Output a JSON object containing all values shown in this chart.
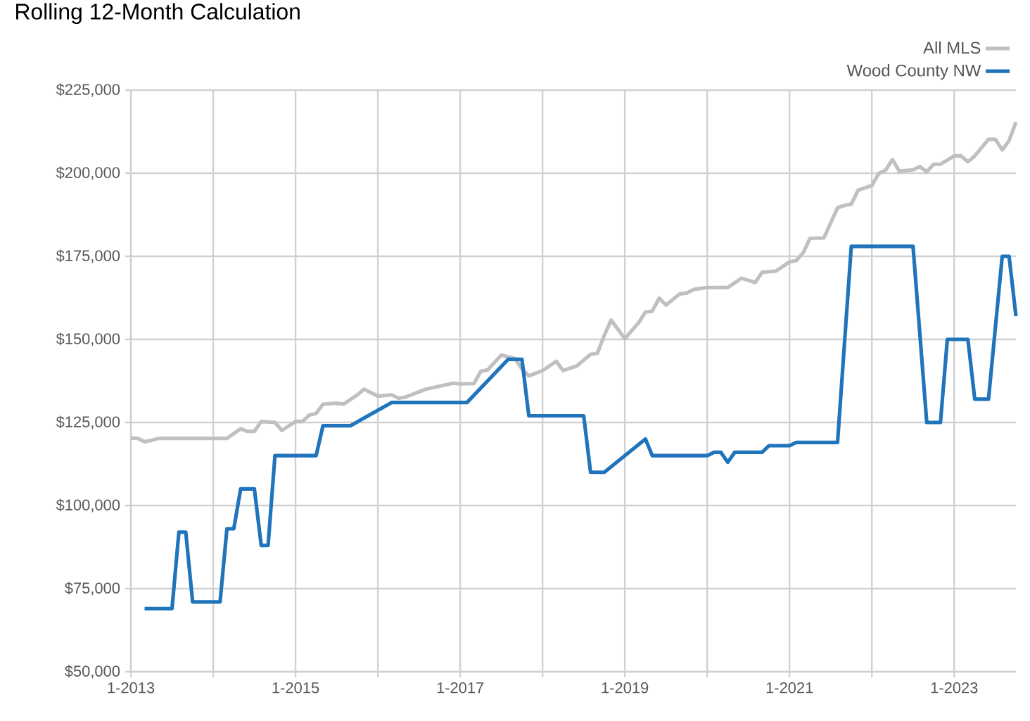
{
  "chart_data": {
    "type": "line",
    "title": "Rolling 12-Month Calculation",
    "series": [
      {
        "name": "All MLS",
        "color": "#c0c0c0",
        "x": [
          "2013-01",
          "2013-02",
          "2013-03",
          "2013-04",
          "2013-05",
          "2014-03",
          "2014-05",
          "2014-06",
          "2014-07",
          "2014-08",
          "2014-10",
          "2014-11",
          "2015-01",
          "2015-02",
          "2015-03",
          "2015-04",
          "2015-05",
          "2015-07",
          "2015-08",
          "2015-10",
          "2015-11",
          "2016-01",
          "2016-03",
          "2016-04",
          "2016-05",
          "2016-08",
          "2016-10",
          "2016-12",
          "2017-01",
          "2017-03",
          "2017-04",
          "2017-05",
          "2017-07",
          "2017-09",
          "2017-10",
          "2017-11",
          "2018-01",
          "2018-03",
          "2018-04",
          "2018-06",
          "2018-08",
          "2018-09",
          "2018-10",
          "2018-11",
          "2019-01",
          "2019-03",
          "2019-04",
          "2019-05",
          "2019-06",
          "2019-07",
          "2019-09",
          "2019-10",
          "2019-11",
          "2020-01",
          "2020-04",
          "2020-06",
          "2020-08",
          "2020-09",
          "2020-11",
          "2021-01",
          "2021-02",
          "2021-03",
          "2021-04",
          "2021-06",
          "2021-08",
          "2021-09",
          "2021-10",
          "2021-11",
          "2022-01",
          "2022-02",
          "2022-03",
          "2022-04",
          "2022-05",
          "2022-07",
          "2022-08",
          "2022-09",
          "2022-10",
          "2022-11",
          "2023-01",
          "2023-02",
          "2023-03",
          "2023-04",
          "2023-06",
          "2023-07",
          "2023-08",
          "2023-09",
          "2023-10"
        ],
        "values": [
          120300,
          120200,
          119200,
          119600,
          120200,
          120200,
          123100,
          122300,
          122300,
          125300,
          125000,
          122600,
          125300,
          125300,
          127200,
          127700,
          130500,
          130800,
          130500,
          133300,
          135000,
          132900,
          133300,
          132300,
          132600,
          135000,
          135900,
          136800,
          136600,
          136700,
          140400,
          140800,
          145300,
          144200,
          141100,
          139000,
          140600,
          143400,
          140600,
          142000,
          145500,
          145800,
          151200,
          155800,
          150200,
          155000,
          158200,
          158500,
          162400,
          160300,
          163700,
          163900,
          165000,
          165600,
          165600,
          168400,
          167100,
          170200,
          170500,
          173300,
          173700,
          176100,
          180400,
          180500,
          189600,
          190300,
          190700,
          194900,
          196300,
          199900,
          200900,
          204100,
          200600,
          201000,
          202000,
          200400,
          202700,
          202700,
          205200,
          205200,
          203400,
          205200,
          210200,
          210200,
          207000,
          209800,
          215400
        ]
      },
      {
        "name": "Wood County NW",
        "color": "#1f74bb",
        "x": [
          "2013-03",
          "2013-07",
          "2013-08",
          "2013-09",
          "2013-10",
          "2014-02",
          "2014-03",
          "2014-04",
          "2014-05",
          "2014-07",
          "2014-08",
          "2014-09",
          "2014-10",
          "2015-04",
          "2015-05",
          "2015-09",
          "2016-03",
          "2017-02",
          "2017-08",
          "2017-10",
          "2017-11",
          "2018-07",
          "2018-08",
          "2018-10",
          "2019-04",
          "2019-05",
          "2020-01",
          "2020-02",
          "2020-03",
          "2020-04",
          "2020-05",
          "2020-09",
          "2020-10",
          "2021-01",
          "2021-02",
          "2021-08",
          "2021-10",
          "2022-07",
          "2022-09",
          "2022-11",
          "2022-12",
          "2023-03",
          "2023-04",
          "2023-06",
          "2023-08",
          "2023-09",
          "2023-10"
        ],
        "values": [
          69000,
          69000,
          92000,
          92000,
          71000,
          71000,
          93000,
          93000,
          105000,
          105000,
          88000,
          88000,
          115000,
          115000,
          124000,
          124000,
          131000,
          131000,
          144000,
          144000,
          127000,
          127000,
          110000,
          110000,
          120000,
          115000,
          115000,
          116000,
          116000,
          113000,
          116000,
          116000,
          118000,
          118000,
          119000,
          119000,
          178000,
          178000,
          125000,
          125000,
          150000,
          150000,
          132000,
          132000,
          175000,
          175000,
          157000
        ]
      }
    ],
    "xlim": [
      "2013-01",
      "2023-10"
    ],
    "xticks": [
      {
        "value": "2013-01",
        "label": "1-2013"
      },
      {
        "value": "2014-01",
        "label": null
      },
      {
        "value": "2015-01",
        "label": "1-2015"
      },
      {
        "value": "2016-01",
        "label": null
      },
      {
        "value": "2017-01",
        "label": "1-2017"
      },
      {
        "value": "2018-01",
        "label": null
      },
      {
        "value": "2019-01",
        "label": "1-2019"
      },
      {
        "value": "2020-01",
        "label": null
      },
      {
        "value": "2021-01",
        "label": "1-2021"
      },
      {
        "value": "2022-01",
        "label": null
      },
      {
        "value": "2023-01",
        "label": "1-2023"
      }
    ],
    "ylim": [
      50000,
      225000
    ],
    "yticks": [
      {
        "value": 50000,
        "label": "$50,000"
      },
      {
        "value": 75000,
        "label": "$75,000"
      },
      {
        "value": 100000,
        "label": "$100,000"
      },
      {
        "value": 125000,
        "label": "$125,000"
      },
      {
        "value": 150000,
        "label": "$150,000"
      },
      {
        "value": 175000,
        "label": "$175,000"
      },
      {
        "value": 200000,
        "label": "$200,000"
      },
      {
        "value": 225000,
        "label": "$225,000"
      }
    ],
    "grid": true,
    "legend": "top right",
    "marker": "none",
    "line_style": "solid"
  }
}
